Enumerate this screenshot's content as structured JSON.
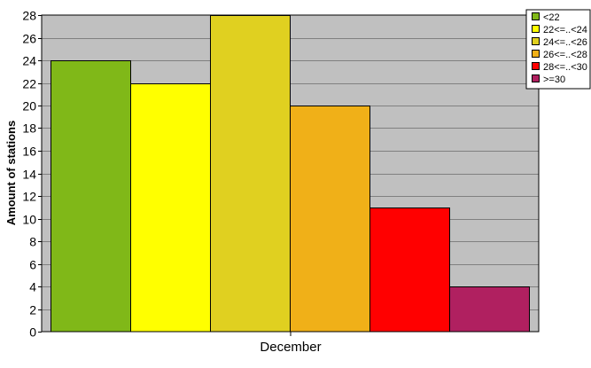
{
  "chart_data": {
    "type": "bar",
    "ylabel": "Amount of stations",
    "xlabel": "",
    "categories": [
      "December"
    ],
    "ylim": [
      0,
      28
    ],
    "yticks": [
      0,
      2,
      4,
      6,
      8,
      10,
      12,
      14,
      16,
      18,
      20,
      22,
      24,
      26,
      28
    ],
    "grid": true,
    "legend_position": "top-right",
    "plot_background": "#c0c0c0",
    "series": [
      {
        "name": "<22",
        "values": [
          24
        ],
        "color": "#80b818"
      },
      {
        "name": "22<=..<24",
        "values": [
          22
        ],
        "color": "#ffff00"
      },
      {
        "name": "24<=..<26",
        "values": [
          28
        ],
        "color": "#e0d020"
      },
      {
        "name": "26<=..<28",
        "values": [
          20
        ],
        "color": "#f0b018"
      },
      {
        "name": "28<=..<30",
        "values": [
          11
        ],
        "color": "#ff0000"
      },
      {
        "name": ">=30",
        "values": [
          4
        ],
        "color": "#b02060"
      }
    ]
  }
}
